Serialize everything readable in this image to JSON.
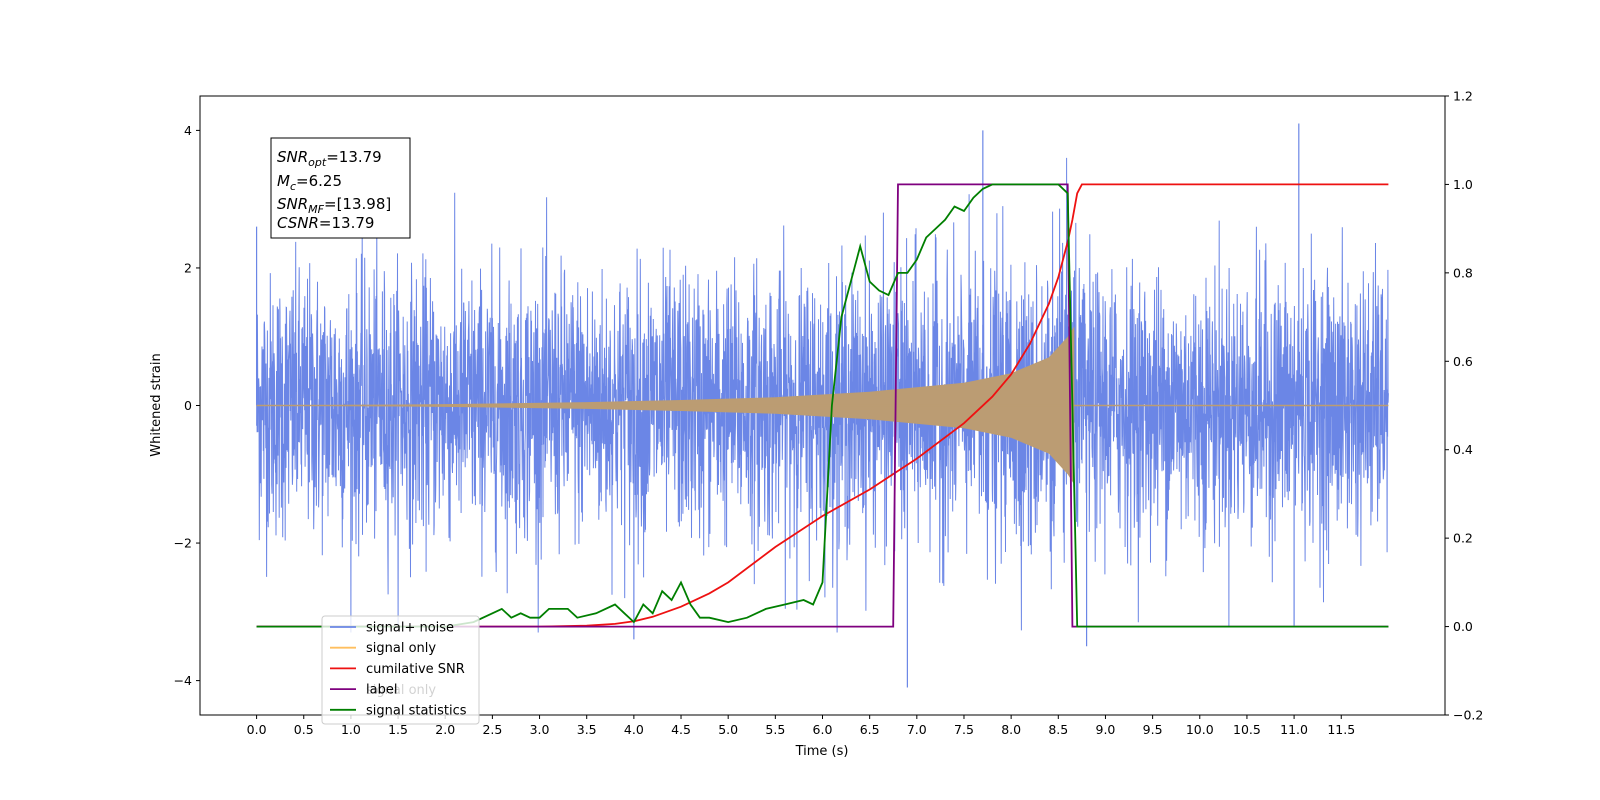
{
  "chart_data": {
    "type": "line",
    "title": "",
    "xlabel": "Time (s)",
    "ylabel_left": "Whitened strain",
    "ylabel_right": "",
    "xlim": [
      -0.6,
      12.6
    ],
    "ylim_left": [
      -4.5,
      4.5
    ],
    "ylim_right": [
      -0.2,
      1.2
    ],
    "x_ticks": [
      "0.0",
      "0.5",
      "1.0",
      "1.5",
      "2.0",
      "2.5",
      "3.0",
      "3.5",
      "4.0",
      "4.5",
      "5.0",
      "5.5",
      "6.0",
      "6.5",
      "7.0",
      "7.5",
      "8.0",
      "8.5",
      "9.0",
      "9.5",
      "10.0",
      "10.5",
      "11.0",
      "11.5"
    ],
    "y_ticks_left": [
      "4",
      "2",
      "0",
      "−2",
      "−4"
    ],
    "y_ticks_right": [
      "1.2",
      "1.0",
      "0.8",
      "0.6",
      "0.4",
      "0.2",
      "0.0",
      "−0.2"
    ],
    "grid": false,
    "annotation": {
      "snr_opt": "=13.79",
      "mc": "=6.25",
      "snr_mf": "=[13.98]",
      "csnr": "=13.79"
    },
    "legend": {
      "placement": "lower-left",
      "entries": [
        "signal+ noise",
        "signal only",
        "cumilative SNR",
        "label",
        "signal statistics"
      ]
    },
    "ghost_legend_text": "signal only",
    "colors": {
      "signal_noise": "#6b86e6",
      "signal_only": "#ffbf5f",
      "overlap": "#bb9c73",
      "cumulative_snr": "#ee1111",
      "label": "#7f007f",
      "signal_statistics": "#007f00"
    },
    "series": [
      {
        "name": "signal+ noise",
        "axis": "left",
        "noise_amplitude_envelope": 2.5,
        "peak_values": [
          [
            0.0,
            2.6
          ],
          [
            4.0,
            -3.4
          ],
          [
            6.9,
            -4.1
          ],
          [
            7.7,
            4.0
          ],
          [
            8.8,
            -3.5
          ],
          [
            11.05,
            4.1
          ],
          [
            11.0,
            -3.2
          ]
        ]
      },
      {
        "name": "signal only",
        "axis": "left",
        "x_range": [
          0.0,
          8.67
        ],
        "amplitude_envelope": [
          [
            0.0,
            0.0
          ],
          [
            2.0,
            0.02
          ],
          [
            3.5,
            0.05
          ],
          [
            4.5,
            0.08
          ],
          [
            5.5,
            0.12
          ],
          [
            6.5,
            0.2
          ],
          [
            7.5,
            0.33
          ],
          [
            8.0,
            0.47
          ],
          [
            8.4,
            0.7
          ],
          [
            8.6,
            1.0
          ],
          [
            8.67,
            1.15
          ]
        ]
      },
      {
        "name": "cumilative SNR",
        "axis": "right",
        "x": [
          0.0,
          3.0,
          3.5,
          3.8,
          4.0,
          4.2,
          4.5,
          4.8,
          5.0,
          5.5,
          6.0,
          6.5,
          7.0,
          7.5,
          7.8,
          8.0,
          8.2,
          8.4,
          8.5,
          8.6,
          8.65,
          8.7,
          8.75,
          12.0
        ],
        "y": [
          0.0,
          0.0,
          0.002,
          0.006,
          0.012,
          0.022,
          0.045,
          0.075,
          0.1,
          0.18,
          0.25,
          0.31,
          0.38,
          0.46,
          0.52,
          0.57,
          0.64,
          0.73,
          0.79,
          0.87,
          0.92,
          0.98,
          1.0,
          1.0
        ]
      },
      {
        "name": "label",
        "axis": "right",
        "x": [
          0.0,
          6.75,
          6.8,
          8.6,
          8.65,
          12.0
        ],
        "y": [
          0.0,
          0.0,
          1.0,
          1.0,
          0.0,
          0.0
        ]
      },
      {
        "name": "signal statistics",
        "axis": "right",
        "x": [
          0.0,
          2.0,
          2.3,
          2.6,
          2.7,
          2.8,
          2.9,
          3.0,
          3.1,
          3.3,
          3.4,
          3.6,
          3.8,
          3.9,
          4.0,
          4.1,
          4.2,
          4.3,
          4.4,
          4.5,
          4.6,
          4.7,
          4.8,
          5.0,
          5.2,
          5.4,
          5.6,
          5.8,
          5.9,
          6.0,
          6.1,
          6.2,
          6.3,
          6.4,
          6.5,
          6.6,
          6.7,
          6.8,
          6.9,
          7.0,
          7.1,
          7.2,
          7.3,
          7.4,
          7.5,
          7.6,
          7.7,
          7.8,
          8.0,
          8.2,
          8.5,
          8.6,
          8.65,
          8.7,
          8.75,
          8.8,
          12.0
        ],
        "y": [
          0.0,
          0.0,
          0.01,
          0.04,
          0.02,
          0.03,
          0.02,
          0.02,
          0.04,
          0.04,
          0.02,
          0.03,
          0.05,
          0.03,
          0.01,
          0.05,
          0.03,
          0.08,
          0.06,
          0.1,
          0.05,
          0.02,
          0.02,
          0.01,
          0.02,
          0.04,
          0.05,
          0.06,
          0.05,
          0.1,
          0.5,
          0.7,
          0.78,
          0.86,
          0.78,
          0.76,
          0.75,
          0.8,
          0.8,
          0.83,
          0.88,
          0.9,
          0.92,
          0.95,
          0.94,
          0.97,
          0.99,
          1.0,
          1.0,
          1.0,
          1.0,
          0.98,
          0.5,
          0.0,
          0.0,
          0.0,
          0.0
        ]
      }
    ]
  }
}
